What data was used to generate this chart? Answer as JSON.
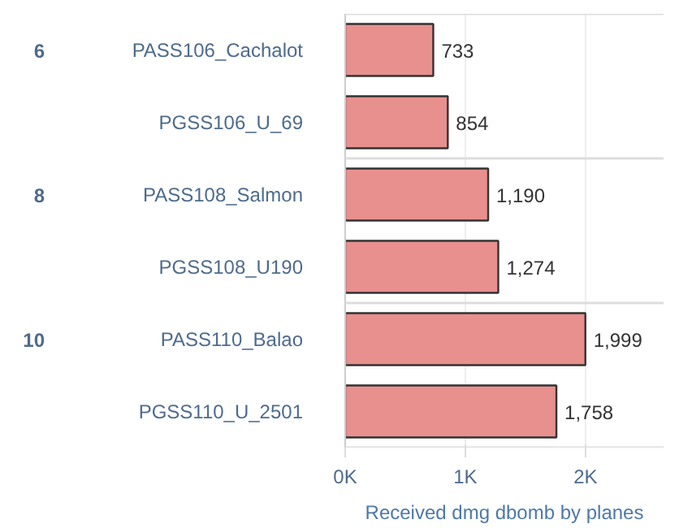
{
  "chart_data": {
    "type": "bar",
    "orientation": "horizontal",
    "xlabel": "Received dmg dbomb by planes",
    "categories": [
      "PASS106_Cachalot",
      "PGSS106_U_69",
      "PASS108_Salmon",
      "PGSS108_U190",
      "PASS110_Balao",
      "PGSS110_U_2501"
    ],
    "values": [
      733,
      854,
      1190,
      1274,
      1999,
      1758
    ],
    "value_labels": [
      "733",
      "854",
      "1,190",
      "1,274",
      "1,999",
      "1,758"
    ],
    "color": "#e8908e",
    "xlim": [
      0,
      2650
    ],
    "xticks": [
      {
        "value": 0,
        "label": "0K"
      },
      {
        "value": 1000,
        "label": "1K"
      },
      {
        "value": 2000,
        "label": "2K"
      }
    ],
    "annotations": [
      "6",
      "8",
      "10"
    ]
  }
}
